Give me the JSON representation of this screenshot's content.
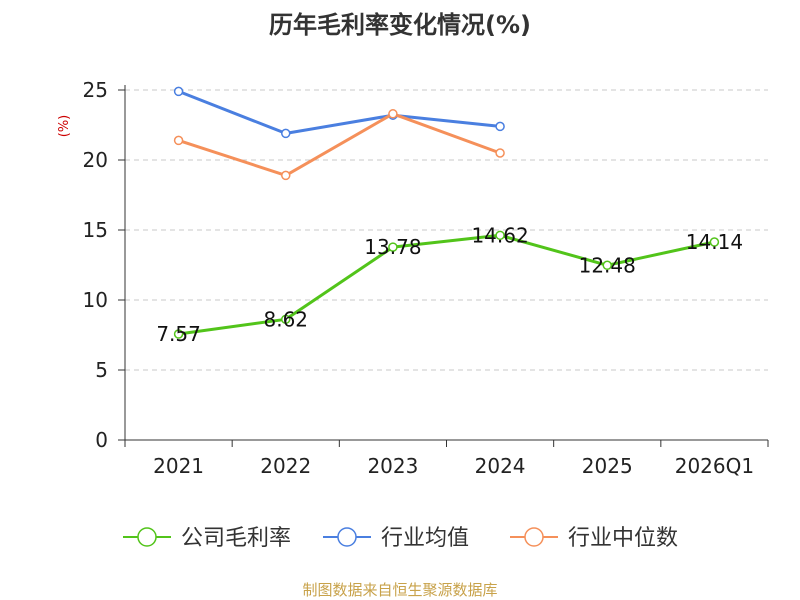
{
  "chart_data": {
    "type": "line",
    "title": "历年毛利率变化情况(%)",
    "ylabel": "(%)",
    "xlabel": "",
    "categories": [
      "2021",
      "2022",
      "2023",
      "2024",
      "2025",
      "2026Q1"
    ],
    "ylim": [
      0,
      25
    ],
    "yticks": [
      "0",
      "5",
      "10",
      "15",
      "20",
      "25"
    ],
    "grid": true,
    "legend_position": "bottom",
    "series": [
      {
        "name": "公司毛利率",
        "color": "#52c41a",
        "values": [
          7.57,
          8.62,
          13.78,
          14.62,
          12.48,
          14.14
        ],
        "labels": [
          "7.57",
          "8.62",
          "13.78",
          "14.62",
          "12.48",
          "14.14"
        ],
        "show_labels": true
      },
      {
        "name": "行业均值",
        "color": "#4a7fe0",
        "values": [
          24.9,
          21.9,
          23.2,
          22.4,
          null,
          null
        ],
        "show_labels": false
      },
      {
        "name": "行业中位数",
        "color": "#f5905a",
        "values": [
          21.4,
          18.9,
          23.3,
          20.5,
          null,
          null
        ],
        "show_labels": false
      }
    ]
  },
  "source": "制图数据来自恒生聚源数据库",
  "colors": {
    "title": "#333333",
    "axis_text": "#222222",
    "ylabel": "#cc0000",
    "grid": "#c8c8c8",
    "source": "#c8a24a"
  }
}
